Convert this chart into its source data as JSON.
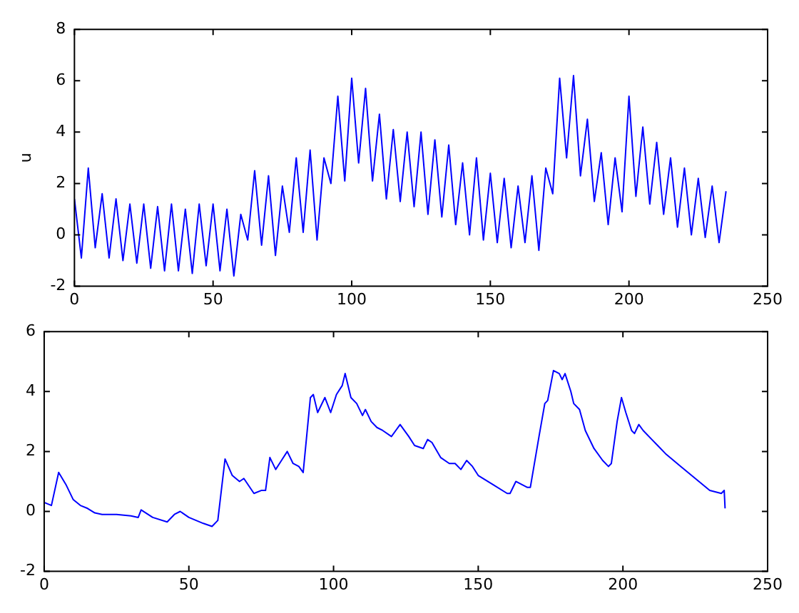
{
  "chart_data": [
    {
      "type": "line",
      "ylabel": "u",
      "xlim": [
        0,
        250
      ],
      "xticks": [
        0,
        50,
        100,
        150,
        200,
        250
      ],
      "ylim": [
        -2,
        8
      ],
      "yticks": [
        -2,
        0,
        2,
        4,
        6,
        8
      ],
      "grid": false,
      "legend": false,
      "marker": "none",
      "line_style": "solid",
      "x": [
        0,
        2.5,
        5,
        7.5,
        10,
        12.5,
        15,
        17.5,
        20,
        22.5,
        25,
        27.5,
        30,
        32.5,
        35,
        37.5,
        40,
        42.5,
        45,
        47.5,
        50,
        52.5,
        55,
        57.5,
        60,
        62.5,
        65,
        67.5,
        70,
        72.5,
        75,
        77.5,
        80,
        82.5,
        85,
        87.5,
        90,
        92.5,
        95,
        97.5,
        100,
        102.5,
        105,
        107.5,
        110,
        112.5,
        115,
        117.5,
        120,
        122.5,
        125,
        127.5,
        130,
        132.5,
        135,
        137.5,
        140,
        142.5,
        145,
        147.5,
        150,
        152.5,
        155,
        157.5,
        160,
        162.5,
        165,
        167.5,
        170,
        172.5,
        175,
        177.5,
        180,
        182.5,
        185,
        187.5,
        190,
        192.5,
        195,
        197.5,
        200,
        202.5,
        205,
        207.5,
        210,
        212.5,
        215,
        217.5,
        220,
        222.5,
        225,
        227.5,
        230,
        232.5,
        235
      ],
      "series": [
        {
          "color": "#0000ff",
          "values": [
            1.4,
            -0.9,
            2.6,
            -0.5,
            1.6,
            -0.9,
            1.4,
            -1.0,
            1.2,
            -1.1,
            1.2,
            -1.3,
            1.1,
            -1.4,
            1.2,
            -1.4,
            1.0,
            -1.5,
            1.2,
            -1.2,
            1.2,
            -1.4,
            1.0,
            -1.6,
            0.8,
            -0.2,
            2.5,
            -0.4,
            2.3,
            -0.8,
            1.9,
            0.1,
            3.0,
            0.1,
            3.3,
            -0.2,
            3.0,
            2.0,
            5.4,
            2.1,
            6.1,
            2.8,
            5.7,
            2.1,
            4.7,
            1.4,
            4.1,
            1.3,
            4.0,
            1.1,
            4.0,
            0.8,
            3.7,
            0.7,
            3.5,
            0.4,
            2.8,
            0.0,
            3.0,
            -0.2,
            2.4,
            -0.3,
            2.2,
            -0.5,
            1.9,
            -0.3,
            2.3,
            -0.6,
            2.6,
            1.6,
            6.1,
            3.0,
            6.2,
            2.3,
            4.5,
            1.3,
            3.2,
            0.4,
            3.0,
            0.9,
            5.4,
            1.5,
            4.2,
            1.2,
            3.6,
            0.8,
            3.0,
            0.3,
            2.6,
            0.0,
            2.2,
            -0.1,
            1.9,
            -0.3,
            1.7
          ]
        }
      ]
    },
    {
      "type": "line",
      "xlim": [
        0,
        250
      ],
      "xticks": [
        0,
        50,
        100,
        150,
        200,
        250
      ],
      "ylim": [
        -2,
        6
      ],
      "yticks": [
        -2,
        0,
        2,
        4,
        6
      ],
      "grid": false,
      "legend": false,
      "marker": "none",
      "line_style": "solid",
      "x": [
        0,
        2.5,
        5,
        7.5,
        10,
        12.5,
        15,
        17.5,
        20,
        25,
        30,
        32.5,
        33.5,
        37.5,
        42.5,
        45,
        47,
        50,
        55,
        58,
        60,
        62.5,
        65,
        67.5,
        69,
        72.5,
        75,
        76.5,
        78,
        80,
        82,
        84,
        86,
        88,
        89.5,
        92,
        93,
        94.5,
        97,
        99,
        101,
        103,
        104,
        106,
        108,
        110,
        111,
        113,
        115,
        117,
        120,
        121.5,
        123,
        126,
        128,
        131,
        132.5,
        134,
        137,
        140,
        142,
        144,
        146,
        148,
        150,
        155,
        160,
        161,
        163,
        165,
        167,
        168,
        171,
        173,
        174,
        176,
        178,
        179,
        180,
        182,
        183,
        185,
        187,
        190,
        193,
        195,
        196,
        198,
        199.5,
        201,
        203,
        204,
        205.5,
        207,
        210,
        212,
        215,
        220,
        225,
        230,
        234,
        235,
        235.3
      ],
      "series": [
        {
          "color": "#0000ff",
          "values": [
            0.3,
            0.2,
            1.3,
            0.9,
            0.4,
            0.2,
            0.1,
            -0.05,
            -0.1,
            -0.1,
            -0.15,
            -0.2,
            0.05,
            -0.2,
            -0.35,
            -0.1,
            0.0,
            -0.2,
            -0.4,
            -0.5,
            -0.3,
            1.75,
            1.2,
            1.0,
            1.1,
            0.6,
            0.7,
            0.7,
            1.8,
            1.4,
            1.7,
            2.0,
            1.6,
            1.5,
            1.3,
            3.8,
            3.9,
            3.3,
            3.8,
            3.3,
            3.9,
            4.2,
            4.6,
            3.8,
            3.6,
            3.2,
            3.4,
            3.0,
            2.8,
            2.7,
            2.5,
            2.7,
            2.9,
            2.5,
            2.2,
            2.1,
            2.4,
            2.3,
            1.8,
            1.6,
            1.6,
            1.4,
            1.7,
            1.5,
            1.2,
            0.9,
            0.6,
            0.6,
            1.0,
            0.9,
            0.8,
            0.8,
            2.5,
            3.6,
            3.7,
            4.7,
            4.6,
            4.4,
            4.6,
            4.0,
            3.6,
            3.4,
            2.7,
            2.1,
            1.7,
            1.5,
            1.6,
            3.0,
            3.8,
            3.3,
            2.7,
            2.6,
            2.9,
            2.7,
            2.4,
            2.2,
            1.9,
            1.5,
            1.1,
            0.7,
            0.6,
            0.7,
            0.1
          ]
        }
      ]
    }
  ]
}
